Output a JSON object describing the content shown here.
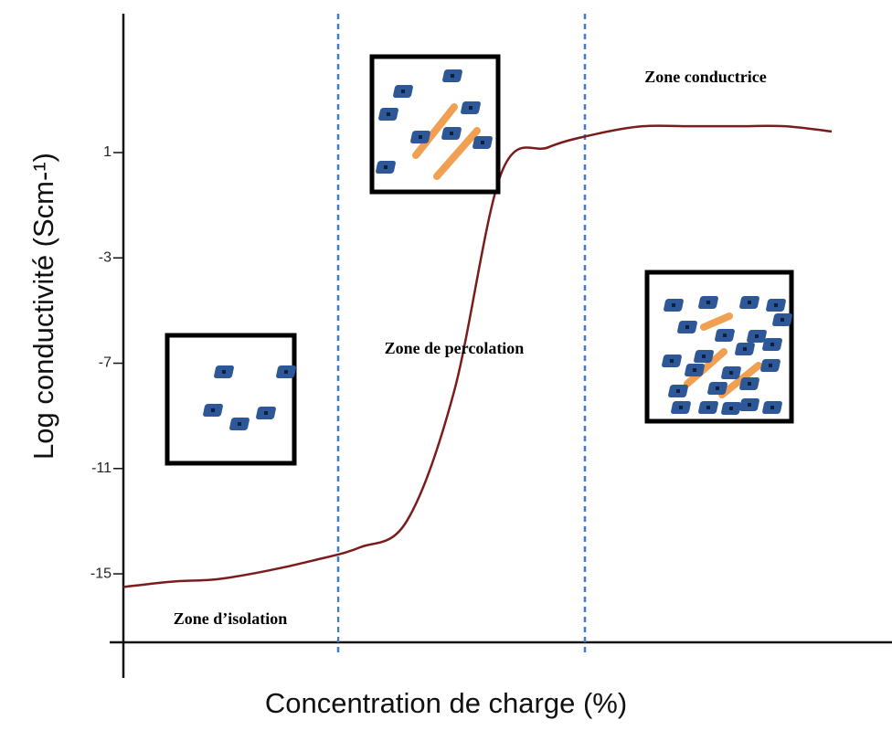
{
  "chart_data": {
    "type": "line",
    "y_label": "Log conductivité (Scm-¹)",
    "x_label": "Concentration de charge (%)",
    "annotations": [
      "Zone conductrice",
      "Zone de percolation",
      "Zone d’isolation"
    ],
    "categories": [
      null,
      null,
      null,
      null,
      null,
      null,
      null,
      null,
      null,
      null,
      null,
      null,
      null,
      null,
      null,
      null
    ],
    "values": [
      -15.5,
      -15.3,
      -15.2,
      -14.9,
      -14.5,
      -14.0,
      -13.0,
      -8.1,
      0.2,
      1.2,
      1.7,
      2.0,
      2.0,
      2.0,
      2.0,
      1.8
    ],
    "color": "#7a1c1c",
    "ylim": [
      -17.6,
      6.1
    ],
    "yticks": [
      1,
      -3,
      -7,
      -11,
      -15
    ]
  }
}
